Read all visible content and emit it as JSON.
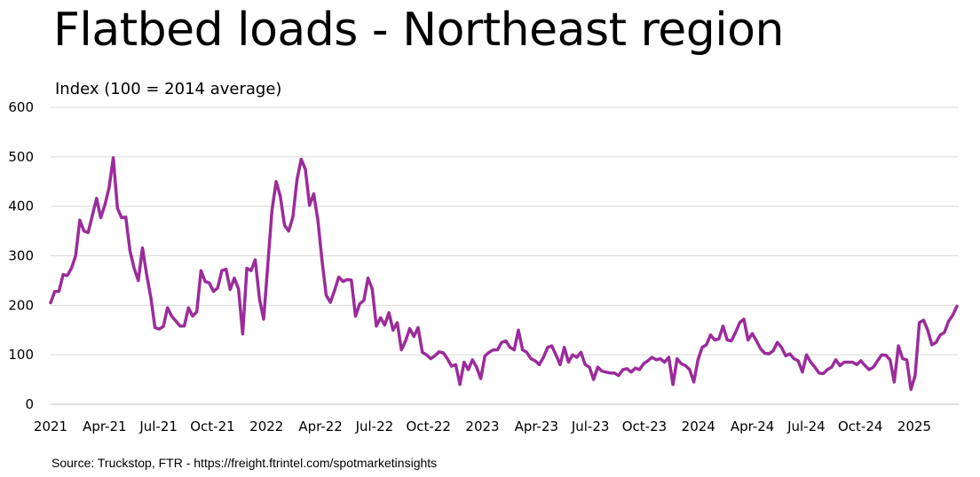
{
  "chart_data": {
    "type": "line",
    "title": "Flatbed loads - Northeast region",
    "ylabel": "Index (100 = 2014 average)",
    "xlabel": "",
    "ylim": [
      0,
      600
    ],
    "y_ticks": [
      0,
      100,
      200,
      300,
      400,
      500,
      600
    ],
    "x_tick_labels": [
      "2021",
      "Apr-21",
      "Jul-21",
      "Oct-21",
      "2022",
      "Apr-22",
      "Jul-22",
      "Oct-22",
      "2023",
      "Apr-23",
      "Jul-23",
      "Oct-23",
      "2024",
      "Apr-24",
      "Jul-24",
      "Oct-24",
      "2025"
    ],
    "grid": "horizontal",
    "legend": "none",
    "source": "Source: Truckstop, FTR - https://freight.ftrintel.com/spotmarketinsights",
    "series": [
      {
        "color": "#9B2C9B",
        "values": [
          205,
          228,
          228,
          262,
          260,
          275,
          300,
          372,
          350,
          347,
          382,
          416,
          377,
          403,
          438,
          498,
          396,
          377,
          378,
          310,
          275,
          250,
          316,
          262,
          216,
          155,
          152,
          157,
          195,
          178,
          168,
          158,
          158,
          195,
          178,
          187,
          270,
          248,
          245,
          228,
          235,
          270,
          273,
          232,
          255,
          233,
          142,
          275,
          270,
          292,
          213,
          172,
          282,
          392,
          450,
          420,
          362,
          350,
          378,
          454,
          495,
          475,
          402,
          425,
          372,
          290,
          220,
          206,
          230,
          257,
          248,
          252,
          251,
          178,
          203,
          210,
          255,
          233,
          158,
          175,
          160,
          185,
          150,
          165,
          110,
          128,
          153,
          137,
          155,
          105,
          100,
          92,
          98,
          106,
          104,
          92,
          77,
          80,
          40,
          85,
          70,
          90,
          75,
          52,
          98,
          105,
          110,
          110,
          125,
          128,
          115,
          110,
          150,
          110,
          105,
          92,
          88,
          80,
          95,
          115,
          118,
          100,
          80,
          115,
          85,
          100,
          95,
          105,
          80,
          75,
          50,
          75,
          67,
          65,
          63,
          63,
          58,
          70,
          72,
          65,
          73,
          70,
          82,
          88,
          95,
          90,
          92,
          85,
          95,
          40,
          92,
          82,
          78,
          70,
          45,
          90,
          115,
          120,
          140,
          130,
          132,
          158,
          130,
          128,
          145,
          165,
          172,
          130,
          143,
          128,
          112,
          103,
          102,
          108,
          125,
          115,
          98,
          102,
          92,
          88,
          65,
          100,
          85,
          75,
          63,
          62,
          70,
          75,
          90,
          78,
          85,
          85,
          85,
          80,
          88,
          78,
          70,
          75,
          88,
          100,
          99,
          90,
          45,
          118,
          92,
          90,
          30,
          58,
          165,
          170,
          150,
          120,
          125,
          140,
          145,
          168,
          180,
          198
        ]
      }
    ]
  }
}
